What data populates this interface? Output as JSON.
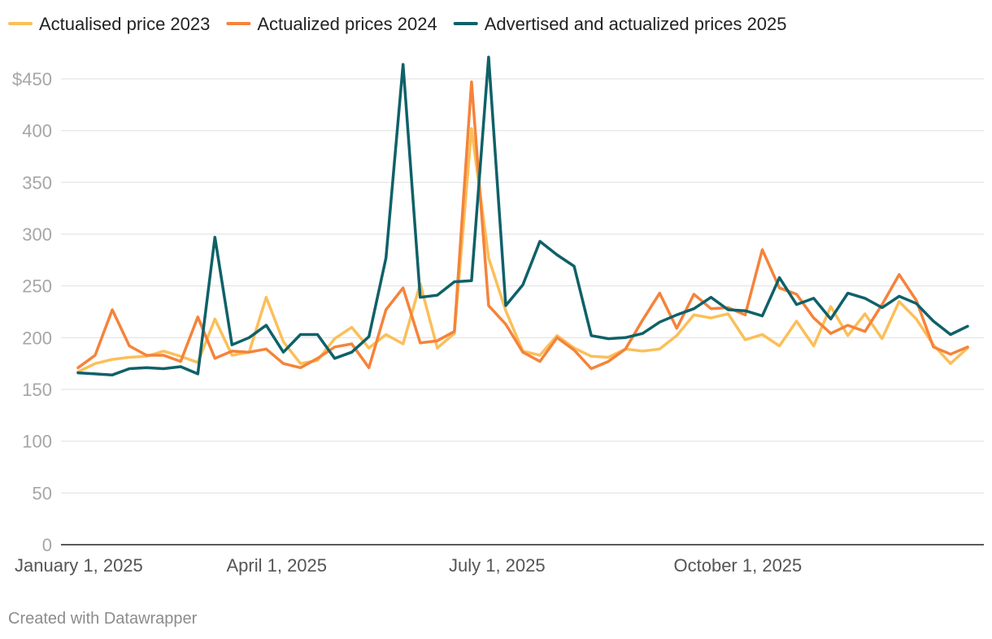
{
  "footer": {
    "credit": "Created with Datawrapper"
  },
  "chart_data": {
    "type": "line",
    "title": "",
    "xlabel": "",
    "ylabel": "",
    "x_axis": {
      "type": "date",
      "range": [
        "2025-01-01",
        "2025-12-31"
      ],
      "ticks": [
        {
          "date": "2025-01-01",
          "label": "January 1, 2025"
        },
        {
          "date": "2025-04-01",
          "label": "April 1, 2025"
        },
        {
          "date": "2025-07-01",
          "label": "July 1, 2025"
        },
        {
          "date": "2025-10-01",
          "label": "October 1, 2025"
        }
      ]
    },
    "y_axis": {
      "range": [
        0,
        470
      ],
      "ticks": [
        {
          "value": 0,
          "label": "0"
        },
        {
          "value": 50,
          "label": "50"
        },
        {
          "value": 100,
          "label": "100"
        },
        {
          "value": 150,
          "label": "150"
        },
        {
          "value": 200,
          "label": "200"
        },
        {
          "value": 250,
          "label": "250"
        },
        {
          "value": 300,
          "label": "300"
        },
        {
          "value": 350,
          "label": "350"
        },
        {
          "value": 400,
          "label": "400"
        },
        {
          "value": 450,
          "label": "$450"
        }
      ],
      "grid": true
    },
    "legend_position": "top-left",
    "series": [
      {
        "name": "Actualised price 2023",
        "color": "#fbbf59",
        "points": [
          [
            "2025-01-01",
            167
          ],
          [
            "2025-01-08",
            175
          ],
          [
            "2025-01-15",
            179
          ],
          [
            "2025-01-22",
            181
          ],
          [
            "2025-01-29",
            182
          ],
          [
            "2025-02-05",
            187
          ],
          [
            "2025-02-12",
            182
          ],
          [
            "2025-02-19",
            176
          ],
          [
            "2025-02-26",
            218
          ],
          [
            "2025-03-05",
            183
          ],
          [
            "2025-03-12",
            186
          ],
          [
            "2025-03-19",
            239
          ],
          [
            "2025-03-26",
            196
          ],
          [
            "2025-04-02",
            175
          ],
          [
            "2025-04-09",
            178
          ],
          [
            "2025-04-16",
            199
          ],
          [
            "2025-04-23",
            210
          ],
          [
            "2025-04-30",
            190
          ],
          [
            "2025-05-07",
            203
          ],
          [
            "2025-05-14",
            194
          ],
          [
            "2025-05-21",
            252
          ],
          [
            "2025-05-28",
            190
          ],
          [
            "2025-06-04",
            204
          ],
          [
            "2025-06-11",
            402
          ],
          [
            "2025-06-18",
            277
          ],
          [
            "2025-06-25",
            226
          ],
          [
            "2025-07-02",
            187
          ],
          [
            "2025-07-09",
            183
          ],
          [
            "2025-07-16",
            202
          ],
          [
            "2025-07-23",
            190
          ],
          [
            "2025-07-30",
            182
          ],
          [
            "2025-08-06",
            181
          ],
          [
            "2025-08-13",
            189
          ],
          [
            "2025-08-20",
            187
          ],
          [
            "2025-08-27",
            189
          ],
          [
            "2025-09-03",
            202
          ],
          [
            "2025-09-10",
            222
          ],
          [
            "2025-09-17",
            219
          ],
          [
            "2025-09-24",
            223
          ],
          [
            "2025-10-01",
            198
          ],
          [
            "2025-10-08",
            203
          ],
          [
            "2025-10-15",
            192
          ],
          [
            "2025-10-22",
            216
          ],
          [
            "2025-10-29",
            192
          ],
          [
            "2025-11-05",
            230
          ],
          [
            "2025-11-12",
            202
          ],
          [
            "2025-11-19",
            223
          ],
          [
            "2025-11-26",
            199
          ],
          [
            "2025-12-03",
            235
          ],
          [
            "2025-12-10",
            218
          ],
          [
            "2025-12-17",
            193
          ],
          [
            "2025-12-24",
            175
          ],
          [
            "2025-12-31",
            190
          ]
        ]
      },
      {
        "name": "Actualized prices 2024",
        "color": "#f5833a",
        "points": [
          [
            "2025-01-01",
            171
          ],
          [
            "2025-01-08",
            183
          ],
          [
            "2025-01-15",
            227
          ],
          [
            "2025-01-22",
            192
          ],
          [
            "2025-01-29",
            183
          ],
          [
            "2025-02-05",
            183
          ],
          [
            "2025-02-12",
            177
          ],
          [
            "2025-02-19",
            220
          ],
          [
            "2025-02-26",
            180
          ],
          [
            "2025-03-05",
            187
          ],
          [
            "2025-03-12",
            186
          ],
          [
            "2025-03-19",
            189
          ],
          [
            "2025-03-26",
            175
          ],
          [
            "2025-04-02",
            171
          ],
          [
            "2025-04-09",
            180
          ],
          [
            "2025-04-16",
            191
          ],
          [
            "2025-04-23",
            194
          ],
          [
            "2025-04-30",
            171
          ],
          [
            "2025-05-07",
            227
          ],
          [
            "2025-05-14",
            248
          ],
          [
            "2025-05-21",
            195
          ],
          [
            "2025-05-28",
            197
          ],
          [
            "2025-06-04",
            206
          ],
          [
            "2025-06-11",
            447
          ],
          [
            "2025-06-18",
            231
          ],
          [
            "2025-06-25",
            213
          ],
          [
            "2025-07-02",
            186
          ],
          [
            "2025-07-09",
            177
          ],
          [
            "2025-07-16",
            200
          ],
          [
            "2025-07-23",
            188
          ],
          [
            "2025-07-30",
            170
          ],
          [
            "2025-08-06",
            177
          ],
          [
            "2025-08-13",
            189
          ],
          [
            "2025-08-20",
            217
          ],
          [
            "2025-08-27",
            243
          ],
          [
            "2025-09-03",
            209
          ],
          [
            "2025-09-10",
            242
          ],
          [
            "2025-09-17",
            228
          ],
          [
            "2025-09-24",
            229
          ],
          [
            "2025-10-01",
            222
          ],
          [
            "2025-10-08",
            285
          ],
          [
            "2025-10-15",
            248
          ],
          [
            "2025-10-22",
            242
          ],
          [
            "2025-10-29",
            219
          ],
          [
            "2025-11-05",
            204
          ],
          [
            "2025-11-12",
            212
          ],
          [
            "2025-11-19",
            206
          ],
          [
            "2025-11-26",
            232
          ],
          [
            "2025-12-03",
            261
          ],
          [
            "2025-12-10",
            236
          ],
          [
            "2025-12-17",
            191
          ],
          [
            "2025-12-24",
            184
          ],
          [
            "2025-12-31",
            191
          ]
        ]
      },
      {
        "name": "Advertised and actualized prices 2025",
        "color": "#0e6168",
        "points": [
          [
            "2025-01-01",
            166
          ],
          [
            "2025-01-08",
            165
          ],
          [
            "2025-01-15",
            164
          ],
          [
            "2025-01-22",
            170
          ],
          [
            "2025-01-29",
            171
          ],
          [
            "2025-02-05",
            170
          ],
          [
            "2025-02-12",
            172
          ],
          [
            "2025-02-19",
            165
          ],
          [
            "2025-02-26",
            297
          ],
          [
            "2025-03-05",
            193
          ],
          [
            "2025-03-12",
            200
          ],
          [
            "2025-03-19",
            212
          ],
          [
            "2025-03-26",
            186
          ],
          [
            "2025-04-02",
            203
          ],
          [
            "2025-04-09",
            203
          ],
          [
            "2025-04-16",
            180
          ],
          [
            "2025-04-23",
            186
          ],
          [
            "2025-04-30",
            201
          ],
          [
            "2025-05-07",
            277
          ],
          [
            "2025-05-14",
            464
          ],
          [
            "2025-05-21",
            239
          ],
          [
            "2025-05-28",
            241
          ],
          [
            "2025-06-04",
            254
          ],
          [
            "2025-06-11",
            255
          ],
          [
            "2025-06-18",
            471
          ],
          [
            "2025-06-25",
            231
          ],
          [
            "2025-07-02",
            251
          ],
          [
            "2025-07-09",
            293
          ],
          [
            "2025-07-16",
            280
          ],
          [
            "2025-07-23",
            269
          ],
          [
            "2025-07-30",
            202
          ],
          [
            "2025-08-06",
            199
          ],
          [
            "2025-08-13",
            200
          ],
          [
            "2025-08-20",
            204
          ],
          [
            "2025-08-27",
            215
          ],
          [
            "2025-09-03",
            222
          ],
          [
            "2025-09-10",
            228
          ],
          [
            "2025-09-17",
            239
          ],
          [
            "2025-09-24",
            227
          ],
          [
            "2025-10-01",
            226
          ],
          [
            "2025-10-08",
            221
          ],
          [
            "2025-10-15",
            258
          ],
          [
            "2025-10-22",
            232
          ],
          [
            "2025-10-29",
            238
          ],
          [
            "2025-11-05",
            218
          ],
          [
            "2025-11-12",
            243
          ],
          [
            "2025-11-19",
            238
          ],
          [
            "2025-11-26",
            229
          ],
          [
            "2025-12-03",
            240
          ],
          [
            "2025-12-10",
            233
          ],
          [
            "2025-12-17",
            216
          ],
          [
            "2025-12-24",
            203
          ],
          [
            "2025-12-31",
            211
          ]
        ]
      }
    ]
  }
}
